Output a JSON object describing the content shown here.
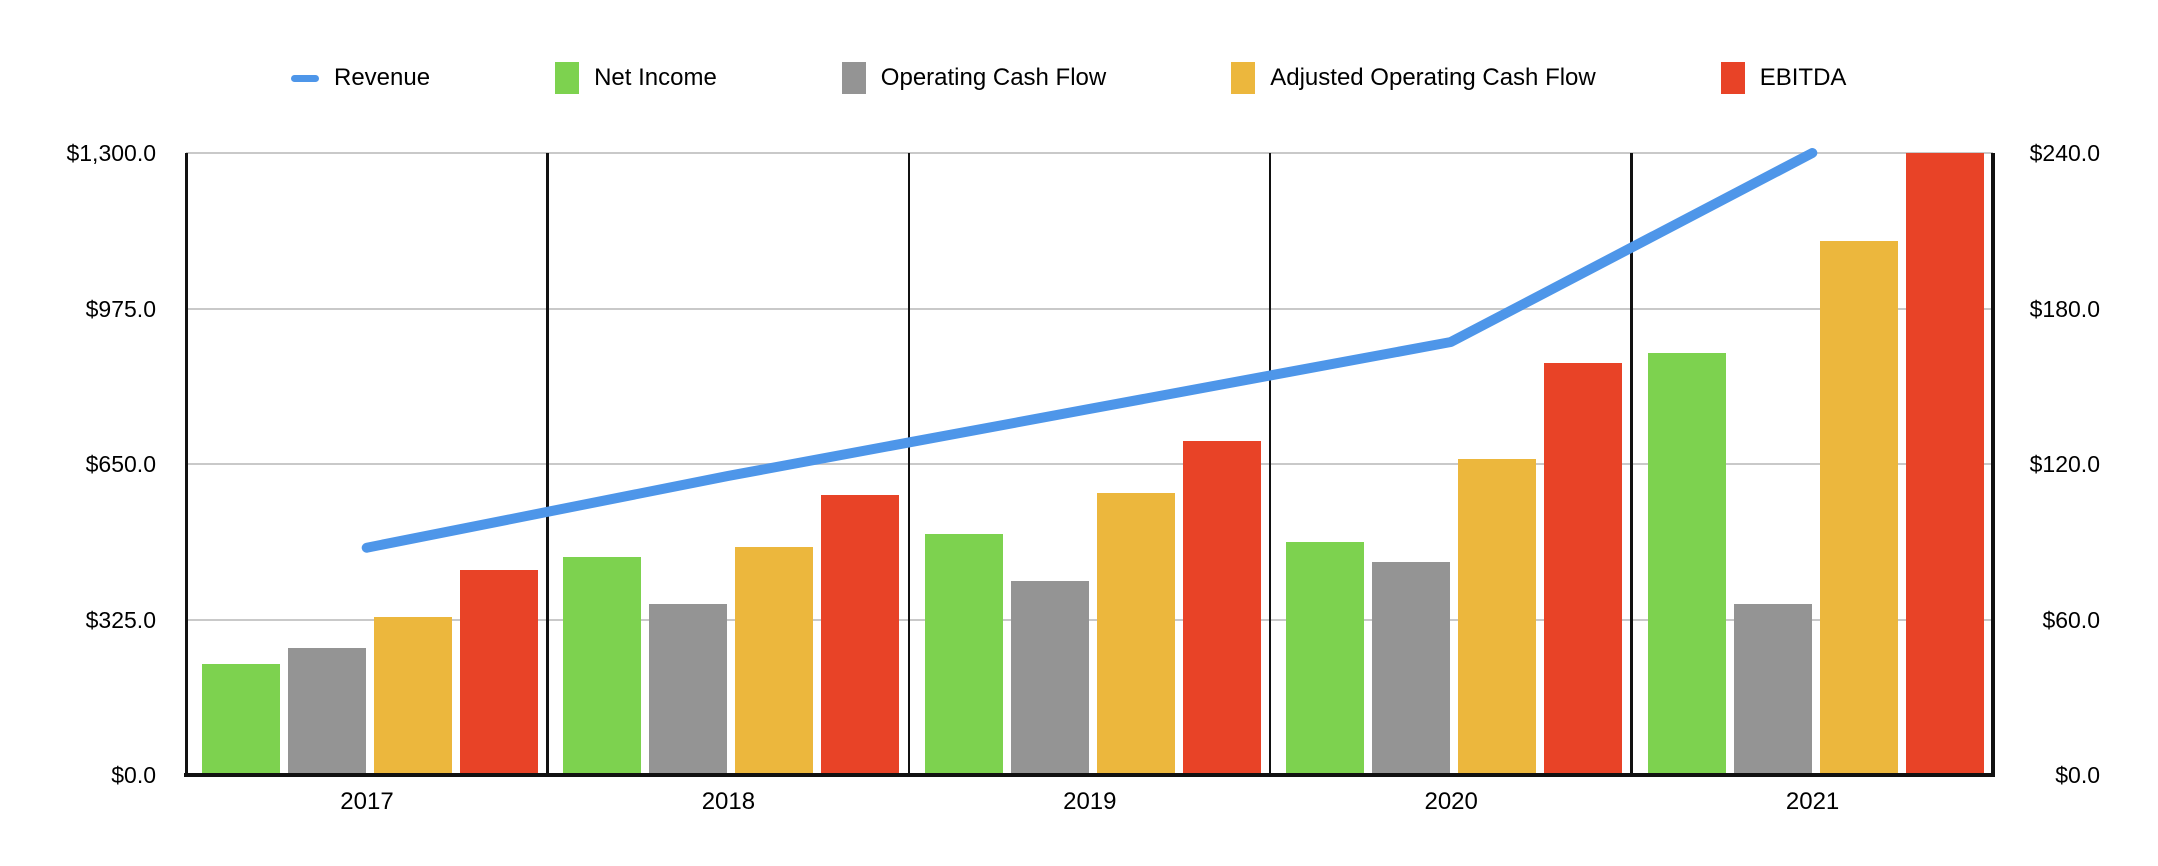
{
  "chart_data": {
    "type": "combo",
    "title": "",
    "categories": [
      "2017",
      "2018",
      "2019",
      "2020",
      "2021"
    ],
    "series": [
      {
        "name": "Revenue",
        "chart": "line",
        "axis": "left",
        "color": "#4E96E9",
        "values": [
          475,
          625,
          765,
          905,
          1300
        ]
      },
      {
        "name": "Net Income",
        "chart": "bar",
        "axis": "right",
        "color": "#7DD24F",
        "values": [
          43,
          84,
          93,
          90,
          163
        ]
      },
      {
        "name": "Operating Cash Flow",
        "chart": "bar",
        "axis": "right",
        "color": "#949494",
        "values": [
          49,
          66,
          75,
          82,
          66
        ]
      },
      {
        "name": "Adjusted Operating Cash Flow",
        "chart": "bar",
        "axis": "right",
        "color": "#ECB73D",
        "values": [
          61,
          88,
          109,
          122,
          206
        ]
      },
      {
        "name": "EBITDA",
        "chart": "bar",
        "axis": "right",
        "color": "#E84327",
        "values": [
          79,
          108,
          129,
          159,
          240
        ]
      }
    ],
    "left_axis": {
      "min": 0,
      "max": 1300,
      "tick_labels": [
        "$0.0",
        "$325.0",
        "$650.0",
        "$975.0",
        "$1,300.0"
      ]
    },
    "right_axis": {
      "min": 0,
      "max": 240,
      "tick_labels": [
        "$0.0",
        "$60.0",
        "$120.0",
        "$180.0",
        "$240.0"
      ]
    },
    "grid": true,
    "legend_position": "top"
  }
}
